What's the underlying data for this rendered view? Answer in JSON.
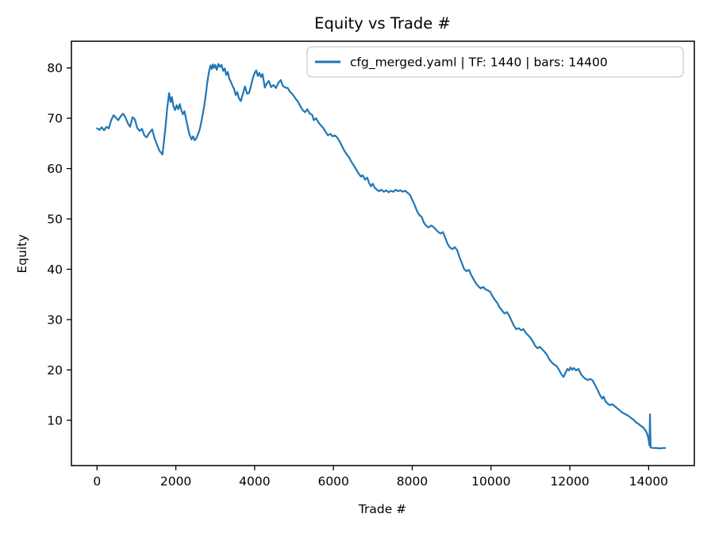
{
  "figure": {
    "title": "Equity vs Trade #",
    "xlabel": "Trade #",
    "ylabel": "Equity",
    "legend": {
      "label": "cfg_merged.yaml | TF: 1440 | bars: 14400",
      "border_color": "#cccccc",
      "background": "#ffffff"
    },
    "background": "#ffffff",
    "line_color": "#1f77b4"
  },
  "chart_data": {
    "type": "line",
    "title": "Equity vs Trade #",
    "xlabel": "Trade #",
    "ylabel": "Equity",
    "grid": false,
    "legend_position": "upper right",
    "xlim": [
      -650,
      15160
    ],
    "ylim": [
      1.0,
      85.3
    ],
    "xticks": [
      0,
      2000,
      4000,
      6000,
      8000,
      10000,
      12000,
      14000
    ],
    "yticks": [
      10,
      20,
      30,
      40,
      50,
      60,
      70,
      80
    ],
    "series": [
      {
        "name": "cfg_merged.yaml | TF: 1440 | bars: 14400",
        "color": "#1f77b4",
        "points": [
          [
            0,
            68.0
          ],
          [
            60,
            67.7
          ],
          [
            120,
            68.2
          ],
          [
            180,
            67.6
          ],
          [
            240,
            68.3
          ],
          [
            300,
            68.0
          ],
          [
            360,
            69.6
          ],
          [
            420,
            70.6
          ],
          [
            480,
            70.1
          ],
          [
            540,
            69.6
          ],
          [
            600,
            70.4
          ],
          [
            660,
            70.9
          ],
          [
            720,
            70.2
          ],
          [
            780,
            69.0
          ],
          [
            840,
            68.3
          ],
          [
            900,
            70.2
          ],
          [
            960,
            69.8
          ],
          [
            1020,
            68.1
          ],
          [
            1080,
            67.5
          ],
          [
            1140,
            67.9
          ],
          [
            1200,
            66.6
          ],
          [
            1260,
            66.2
          ],
          [
            1320,
            67.0
          ],
          [
            1400,
            67.8
          ],
          [
            1460,
            66.0
          ],
          [
            1520,
            64.8
          ],
          [
            1580,
            63.6
          ],
          [
            1660,
            62.8
          ],
          [
            1700,
            65.5
          ],
          [
            1740,
            68.5
          ],
          [
            1780,
            72.0
          ],
          [
            1830,
            75.0
          ],
          [
            1870,
            73.2
          ],
          [
            1900,
            74.2
          ],
          [
            1940,
            72.4
          ],
          [
            1980,
            71.6
          ],
          [
            2020,
            72.6
          ],
          [
            2060,
            71.8
          ],
          [
            2100,
            72.8
          ],
          [
            2140,
            71.6
          ],
          [
            2180,
            70.8
          ],
          [
            2220,
            71.4
          ],
          [
            2260,
            69.8
          ],
          [
            2300,
            68.4
          ],
          [
            2340,
            66.9
          ],
          [
            2400,
            65.8
          ],
          [
            2440,
            66.4
          ],
          [
            2480,
            65.6
          ],
          [
            2520,
            66.0
          ],
          [
            2560,
            66.8
          ],
          [
            2600,
            67.6
          ],
          [
            2640,
            69.0
          ],
          [
            2680,
            70.6
          ],
          [
            2720,
            72.4
          ],
          [
            2760,
            74.6
          ],
          [
            2800,
            77.2
          ],
          [
            2840,
            79.2
          ],
          [
            2880,
            80.5
          ],
          [
            2910,
            79.8
          ],
          [
            2940,
            80.7
          ],
          [
            2970,
            80.0
          ],
          [
            3000,
            80.6
          ],
          [
            3040,
            79.6
          ],
          [
            3080,
            80.8
          ],
          [
            3120,
            80.2
          ],
          [
            3160,
            80.6
          ],
          [
            3200,
            79.4
          ],
          [
            3240,
            79.9
          ],
          [
            3280,
            78.6
          ],
          [
            3320,
            79.2
          ],
          [
            3360,
            77.8
          ],
          [
            3400,
            77.2
          ],
          [
            3440,
            76.4
          ],
          [
            3480,
            75.8
          ],
          [
            3520,
            74.6
          ],
          [
            3560,
            75.2
          ],
          [
            3600,
            74.0
          ],
          [
            3650,
            73.4
          ],
          [
            3700,
            74.8
          ],
          [
            3755,
            76.3
          ],
          [
            3810,
            74.9
          ],
          [
            3855,
            75.0
          ],
          [
            3900,
            76.2
          ],
          [
            3956,
            78.0
          ],
          [
            4000,
            79.0
          ],
          [
            4040,
            79.5
          ],
          [
            4080,
            78.4
          ],
          [
            4120,
            79.0
          ],
          [
            4160,
            78.2
          ],
          [
            4200,
            78.8
          ],
          [
            4260,
            76.1
          ],
          [
            4300,
            76.8
          ],
          [
            4360,
            77.4
          ],
          [
            4420,
            76.2
          ],
          [
            4480,
            76.6
          ],
          [
            4540,
            76.0
          ],
          [
            4600,
            77.0
          ],
          [
            4660,
            77.6
          ],
          [
            4720,
            76.4
          ],
          [
            4780,
            76.1
          ],
          [
            4840,
            76.0
          ],
          [
            4900,
            75.2
          ],
          [
            4960,
            74.8
          ],
          [
            5040,
            73.9
          ],
          [
            5100,
            73.3
          ],
          [
            5160,
            72.4
          ],
          [
            5220,
            71.6
          ],
          [
            5280,
            71.2
          ],
          [
            5340,
            71.8
          ],
          [
            5400,
            70.9
          ],
          [
            5460,
            70.7
          ],
          [
            5500,
            69.6
          ],
          [
            5560,
            70.0
          ],
          [
            5620,
            69.2
          ],
          [
            5680,
            68.6
          ],
          [
            5740,
            68.1
          ],
          [
            5800,
            67.3
          ],
          [
            5860,
            66.6
          ],
          [
            5920,
            66.9
          ],
          [
            5980,
            66.4
          ],
          [
            6040,
            66.6
          ],
          [
            6100,
            66.1
          ],
          [
            6160,
            65.4
          ],
          [
            6220,
            64.4
          ],
          [
            6280,
            63.5
          ],
          [
            6340,
            62.8
          ],
          [
            6400,
            62.2
          ],
          [
            6460,
            61.3
          ],
          [
            6520,
            60.6
          ],
          [
            6580,
            59.8
          ],
          [
            6640,
            59.0
          ],
          [
            6700,
            58.4
          ],
          [
            6740,
            58.7
          ],
          [
            6800,
            57.8
          ],
          [
            6860,
            58.2
          ],
          [
            6900,
            57.2
          ],
          [
            6950,
            56.5
          ],
          [
            7000,
            57.0
          ],
          [
            7050,
            56.2
          ],
          [
            7100,
            55.8
          ],
          [
            7160,
            55.5
          ],
          [
            7220,
            55.8
          ],
          [
            7280,
            55.4
          ],
          [
            7340,
            55.7
          ],
          [
            7400,
            55.3
          ],
          [
            7460,
            55.6
          ],
          [
            7520,
            55.4
          ],
          [
            7580,
            55.8
          ],
          [
            7640,
            55.5
          ],
          [
            7700,
            55.7
          ],
          [
            7760,
            55.4
          ],
          [
            7820,
            55.6
          ],
          [
            7880,
            55.2
          ],
          [
            7940,
            54.8
          ],
          [
            8000,
            53.8
          ],
          [
            8060,
            52.8
          ],
          [
            8120,
            51.6
          ],
          [
            8180,
            50.8
          ],
          [
            8240,
            50.4
          ],
          [
            8300,
            49.2
          ],
          [
            8360,
            48.6
          ],
          [
            8420,
            48.3
          ],
          [
            8480,
            48.7
          ],
          [
            8540,
            48.4
          ],
          [
            8600,
            47.9
          ],
          [
            8660,
            47.4
          ],
          [
            8720,
            47.1
          ],
          [
            8780,
            47.4
          ],
          [
            8840,
            46.2
          ],
          [
            8900,
            45.0
          ],
          [
            8960,
            44.3
          ],
          [
            9020,
            44.0
          ],
          [
            9080,
            44.4
          ],
          [
            9140,
            43.8
          ],
          [
            9200,
            42.4
          ],
          [
            9260,
            41.2
          ],
          [
            9320,
            40.0
          ],
          [
            9380,
            39.6
          ],
          [
            9440,
            39.9
          ],
          [
            9500,
            38.8
          ],
          [
            9560,
            38.0
          ],
          [
            9620,
            37.2
          ],
          [
            9680,
            36.6
          ],
          [
            9740,
            36.2
          ],
          [
            9800,
            36.5
          ],
          [
            9860,
            36.0
          ],
          [
            9920,
            35.8
          ],
          [
            9980,
            35.5
          ],
          [
            10040,
            34.6
          ],
          [
            10100,
            33.9
          ],
          [
            10160,
            33.3
          ],
          [
            10220,
            32.4
          ],
          [
            10280,
            31.8
          ],
          [
            10340,
            31.2
          ],
          [
            10400,
            31.5
          ],
          [
            10460,
            30.8
          ],
          [
            10520,
            29.8
          ],
          [
            10580,
            28.8
          ],
          [
            10640,
            28.1
          ],
          [
            10700,
            28.3
          ],
          [
            10760,
            27.9
          ],
          [
            10820,
            28.1
          ],
          [
            10880,
            27.4
          ],
          [
            10940,
            26.9
          ],
          [
            11000,
            26.4
          ],
          [
            11060,
            25.7
          ],
          [
            11120,
            24.8
          ],
          [
            11180,
            24.3
          ],
          [
            11240,
            24.6
          ],
          [
            11300,
            24.1
          ],
          [
            11360,
            23.6
          ],
          [
            11420,
            23.0
          ],
          [
            11480,
            22.1
          ],
          [
            11540,
            21.5
          ],
          [
            11600,
            21.1
          ],
          [
            11660,
            20.8
          ],
          [
            11720,
            20.1
          ],
          [
            11780,
            19.2
          ],
          [
            11840,
            18.6
          ],
          [
            11900,
            19.6
          ],
          [
            11940,
            20.2
          ],
          [
            11980,
            19.9
          ],
          [
            12020,
            20.5
          ],
          [
            12060,
            20.0
          ],
          [
            12100,
            20.4
          ],
          [
            12160,
            19.9
          ],
          [
            12220,
            20.2
          ],
          [
            12280,
            19.2
          ],
          [
            12340,
            18.6
          ],
          [
            12400,
            18.2
          ],
          [
            12460,
            18.0
          ],
          [
            12520,
            18.2
          ],
          [
            12580,
            17.9
          ],
          [
            12640,
            17.0
          ],
          [
            12700,
            16.1
          ],
          [
            12760,
            15.1
          ],
          [
            12820,
            14.3
          ],
          [
            12860,
            14.7
          ],
          [
            12900,
            13.8
          ],
          [
            12960,
            13.3
          ],
          [
            13020,
            13.0
          ],
          [
            13080,
            13.2
          ],
          [
            13140,
            12.8
          ],
          [
            13200,
            12.4
          ],
          [
            13260,
            12.0
          ],
          [
            13320,
            11.6
          ],
          [
            13380,
            11.3
          ],
          [
            13440,
            11.1
          ],
          [
            13500,
            10.8
          ],
          [
            13560,
            10.4
          ],
          [
            13620,
            10.1
          ],
          [
            13680,
            9.6
          ],
          [
            13740,
            9.3
          ],
          [
            13800,
            8.9
          ],
          [
            13860,
            8.6
          ],
          [
            13920,
            8.0
          ],
          [
            13960,
            7.4
          ],
          [
            14000,
            6.2
          ],
          [
            14020,
            5.0
          ],
          [
            14035,
            11.2
          ],
          [
            14050,
            4.6
          ],
          [
            14120,
            4.5
          ],
          [
            14200,
            4.5
          ],
          [
            14280,
            4.4
          ],
          [
            14360,
            4.5
          ],
          [
            14420,
            4.5
          ]
        ]
      }
    ]
  }
}
